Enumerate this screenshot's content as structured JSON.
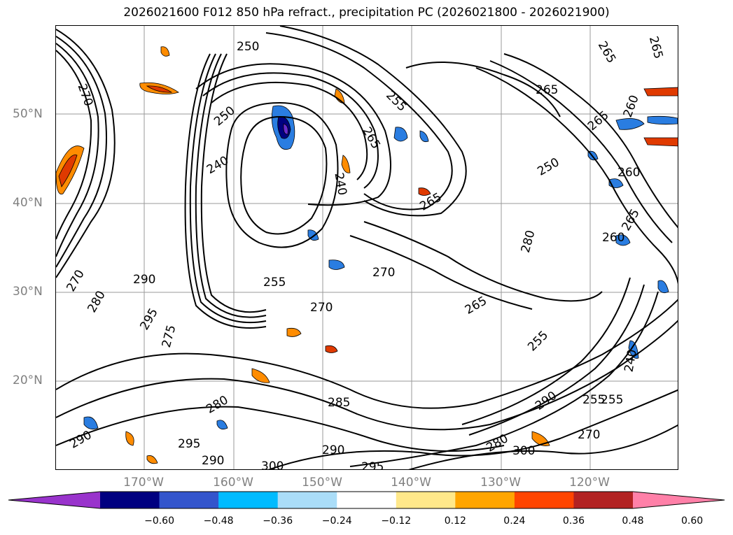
{
  "title": "2026021600 F012 850 hPa refract., precipitation PC (2026021800 - 2026021900)",
  "lat_labels": [
    "50°N",
    "40°N",
    "30°N",
    "20°N"
  ],
  "lon_labels": [
    "170°W",
    "160°W",
    "150°W",
    "140°W",
    "130°W",
    "120°W"
  ],
  "colorbar": {
    "ticks": [
      "−0.60",
      "−0.48",
      "−0.36",
      "−0.24",
      "−0.12",
      "0.12",
      "0.24",
      "0.36",
      "0.48",
      "0.60"
    ],
    "colors": [
      "#9933cc",
      "#000080",
      "#3355cc",
      "#00bbff",
      "#aaddf8",
      "#ffffff",
      "#ffe88a",
      "#ffa500",
      "#ff4500",
      "#b22222",
      "#ff80a8"
    ]
  },
  "contour_labels": [
    "250",
    "265",
    "265",
    "270",
    "265",
    "255",
    "240",
    "250",
    "265",
    "265",
    "260",
    "240",
    "255",
    "270",
    "270",
    "265",
    "265",
    "280",
    "255",
    "285",
    "290",
    "295",
    "300",
    "290",
    "295",
    "300",
    "280",
    "255",
    "280",
    "275",
    "290",
    "280",
    "295",
    "260",
    "250",
    "290",
    "270",
    "265",
    "260",
    "240",
    "290",
    "270",
    "255"
  ],
  "color_legend": {
    "contours": "#000000",
    "precip_neg_strong": "#6a2ccc",
    "precip_neg": "#2a7de1",
    "precip_pos": "#ff8c00",
    "precip_pos_strong": "#e03a00"
  }
}
